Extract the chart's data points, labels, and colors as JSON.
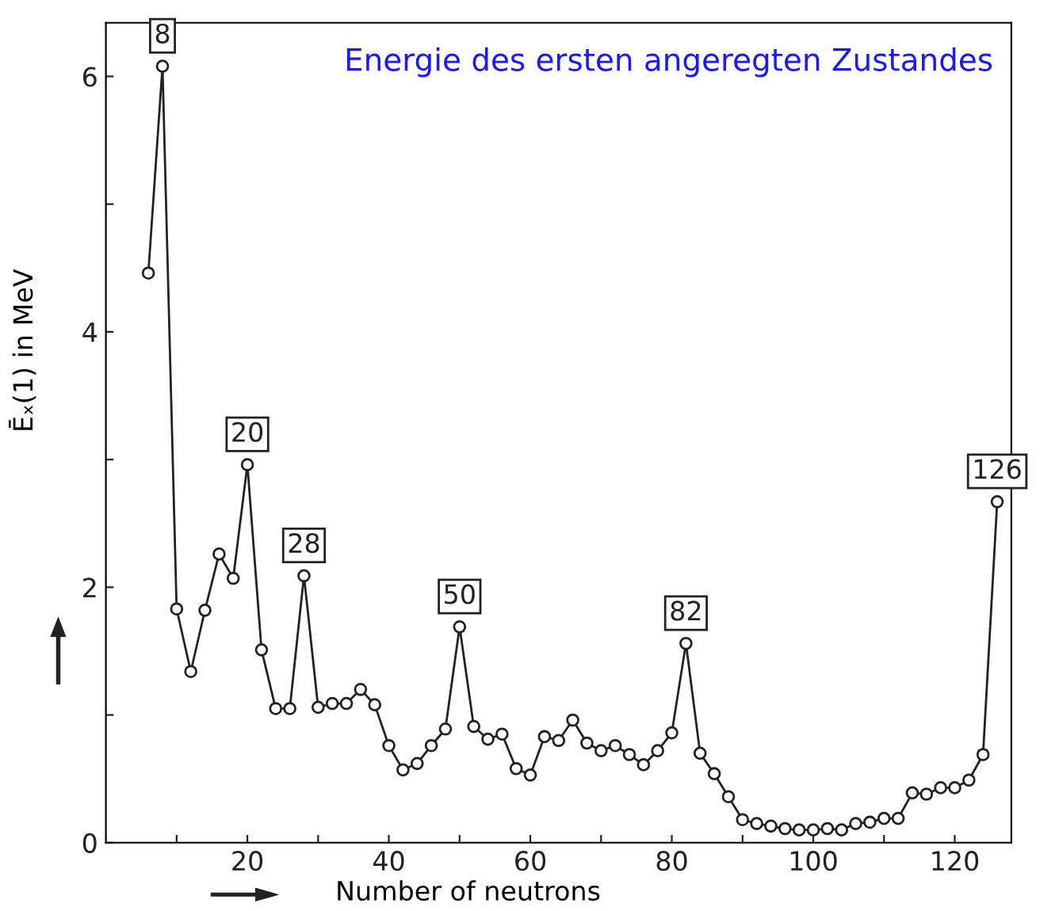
{
  "chart_data": {
    "type": "line",
    "title": "Energie des ersten angeregten Zustandes",
    "xlabel": "Number of neutrons",
    "ylabel": "Ēₓ(1) in MeV",
    "x": [
      6,
      8,
      10,
      12,
      14,
      16,
      18,
      20,
      22,
      24,
      26,
      28,
      30,
      32,
      34,
      36,
      38,
      40,
      42,
      44,
      46,
      48,
      50,
      52,
      54,
      56,
      58,
      60,
      62,
      64,
      66,
      68,
      70,
      72,
      74,
      76,
      78,
      80,
      82,
      84,
      86,
      88,
      90,
      92,
      94,
      96,
      98,
      100,
      102,
      104,
      106,
      108,
      110,
      112,
      114,
      116,
      118,
      120,
      122,
      124,
      126
    ],
    "series": [
      {
        "color": "#222222",
        "values": [
          4.46,
          6.08,
          1.83,
          1.34,
          1.82,
          2.26,
          2.07,
          2.96,
          1.51,
          1.05,
          1.05,
          2.09,
          1.06,
          1.09,
          1.09,
          1.2,
          1.08,
          0.76,
          0.57,
          0.62,
          0.76,
          0.89,
          1.69,
          0.91,
          0.81,
          0.85,
          0.58,
          0.53,
          0.83,
          0.8,
          0.96,
          0.78,
          0.72,
          0.76,
          0.69,
          0.61,
          0.72,
          0.86,
          1.56,
          0.7,
          0.54,
          0.36,
          0.18,
          0.15,
          0.13,
          0.11,
          0.1,
          0.1,
          0.11,
          0.1,
          0.15,
          0.16,
          0.19,
          0.19,
          0.39,
          0.38,
          0.43,
          0.43,
          0.49,
          0.69,
          2.67
        ]
      }
    ],
    "annotations": [
      {
        "text": "8",
        "x": 8,
        "y": 6.08
      },
      {
        "text": "20",
        "x": 20,
        "y": 2.96
      },
      {
        "text": "28",
        "x": 28,
        "y": 2.09
      },
      {
        "text": "50",
        "x": 50,
        "y": 1.69
      },
      {
        "text": "82",
        "x": 82,
        "y": 1.56
      },
      {
        "text": "126",
        "x": 126,
        "y": 2.67
      }
    ],
    "xlim": [
      0,
      128
    ],
    "ylim": [
      0,
      6.42
    ],
    "xticks": [
      {
        "value": 10,
        "label": null
      },
      20,
      {
        "value": 30,
        "label": null
      },
      40,
      {
        "value": 50,
        "label": null
      },
      60,
      {
        "value": 70,
        "label": null
      },
      80,
      {
        "value": 90,
        "label": null
      },
      100,
      {
        "value": 110,
        "label": null
      },
      120
    ],
    "yticks": [
      0,
      {
        "value": 1,
        "label": null
      },
      2,
      {
        "value": 3,
        "label": null
      },
      4,
      {
        "value": 5,
        "label": null
      },
      6
    ],
    "marker": "circle",
    "line_style": "solid",
    "grid": false,
    "legend": false
  }
}
